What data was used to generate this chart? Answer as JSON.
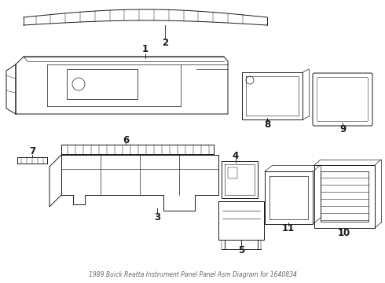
{
  "title": "1989 Buick Reatta Instrument Panel Panel Asm Diagram for 1640834",
  "background_color": "#ffffff",
  "line_color": "#1a1a1a",
  "font_size": 8.5
}
